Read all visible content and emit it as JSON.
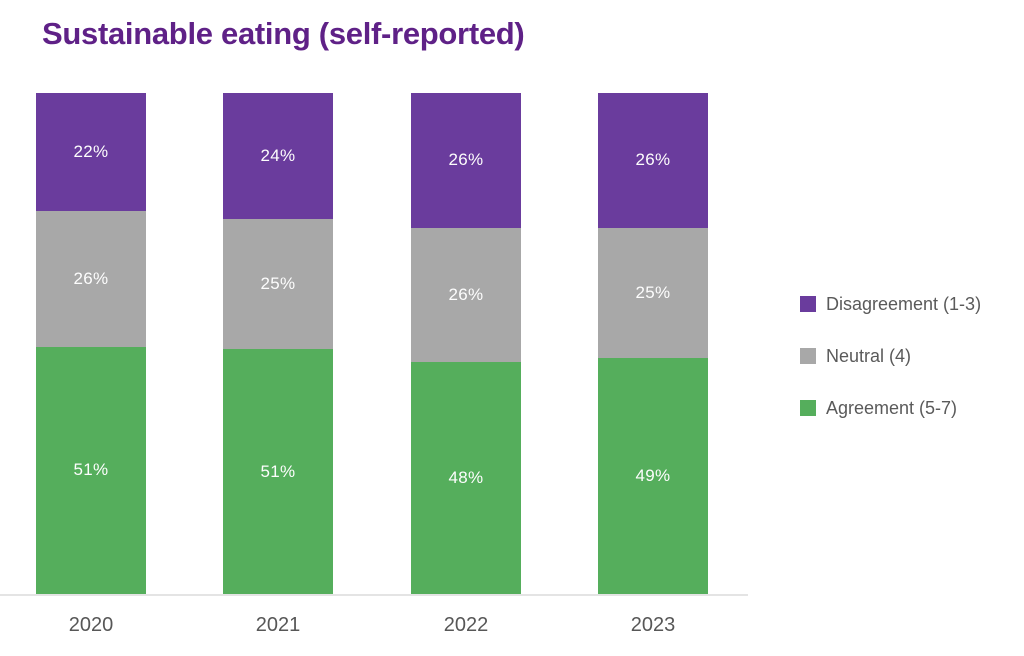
{
  "title": "Sustainable eating (self-reported)",
  "colors": {
    "title": "#5f2187",
    "disagreement": "#6a3c9d",
    "neutral": "#a8a8a8",
    "agreement": "#55ae5c",
    "axis_line": "#e4e4e4",
    "x_label_text": "#575757",
    "legend_text": "#5a5a5a",
    "bar_value_text": "#fdfdfd"
  },
  "chart_data": {
    "type": "bar",
    "stacked": true,
    "orientation": "vertical",
    "categories": [
      "2020",
      "2021",
      "2022",
      "2023"
    ],
    "series": [
      {
        "name": "Disagreement (1-3)",
        "color_key": "disagreement",
        "values": [
          22,
          24,
          26,
          26
        ]
      },
      {
        "name": "Neutral (4)",
        "color_key": "neutral",
        "values": [
          26,
          25,
          26,
          25
        ]
      },
      {
        "name": "Agreement (5-7)",
        "color_key": "agreement",
        "values": [
          51,
          51,
          48,
          49
        ]
      }
    ],
    "value_suffix": "%",
    "legend": [
      {
        "label": "Disagreement (1-3)",
        "color_key": "disagreement"
      },
      {
        "label": "Neutral (4)",
        "color_key": "neutral"
      },
      {
        "label": "Agreement (5-7)",
        "color_key": "agreement"
      }
    ],
    "legend_position": "right",
    "grid": false,
    "x_axis_line": true,
    "ylim": [
      0,
      100
    ]
  }
}
